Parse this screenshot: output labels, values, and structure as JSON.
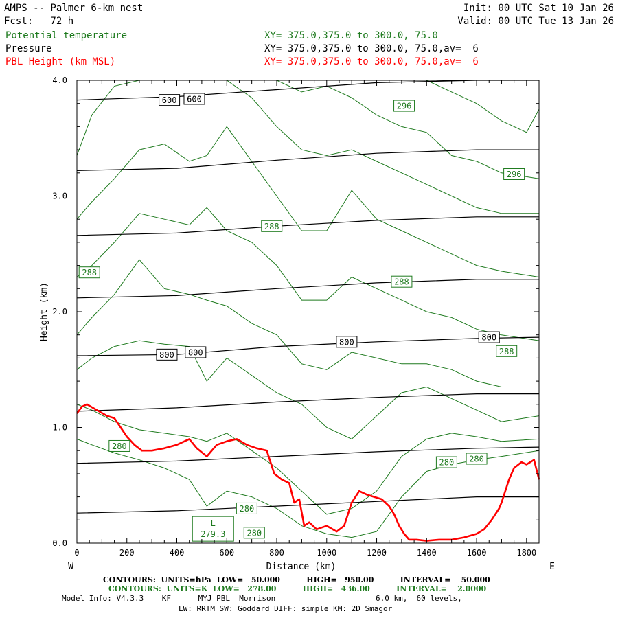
{
  "header": {
    "left_line1": "AMPS -- Palmer 6-km nest",
    "left_line2": "Fcst:   72 h",
    "right_line1": "Init: 00 UTC Sat 10 Jan 26",
    "right_line2": "Valid: 00 UTC Tue 13 Jan 26"
  },
  "legend": [
    {
      "label": "Potential temperature",
      "desc": "XY= 375.0,375.0 to 300.0, 75.0",
      "color": "#1e7a1e"
    },
    {
      "label": "Pressure",
      "desc": "XY= 375.0,375.0 to 300.0, 75.0,av=  6",
      "color": "#000000"
    },
    {
      "label": "PBL Height (km MSL)",
      "desc": "XY= 375.0,375.0 to 300.0, 75.0,av=  6",
      "color": "#ff0000"
    }
  ],
  "footer": {
    "line1": "CONTOURS:  UNITS=hPa  LOW=   50.000          HIGH=   950.00          INTERVAL=    50.000",
    "line2": "CONTOURS:  UNITS=K  LOW=   278.00          HIGH=   436.00          INTERVAL=    2.0000",
    "line3": "Model Info: V4.3.3    KF      MYJ PBL  Morrison                      6.0 km,  60 levels,",
    "line4": "LW: RRTM SW: Goddard DIFF: simple KM: 2D Smagor"
  },
  "chart_data": {
    "type": "line",
    "title": "AMPS -- Palmer 6-km nest cross section",
    "xlabel": "Distance (km)",
    "ylabel": "Height (km)",
    "xlim": [
      0,
      1850
    ],
    "ylim": [
      0,
      4.0
    ],
    "x_ticks": [
      0,
      200,
      400,
      600,
      800,
      1000,
      1200,
      1400,
      1600,
      1800
    ],
    "y_ticks": [
      0.0,
      1.0,
      2.0,
      3.0,
      4.0
    ],
    "y_tick_labels": [
      "0.0",
      "1.0",
      "2.0",
      "3.0",
      "4.0"
    ],
    "x_end_labels": {
      "left": "W",
      "right": "E"
    },
    "pressure_series": [
      {
        "name": "600 hPa",
        "x": [
          0,
          400,
          800,
          1200,
          1600,
          1850
        ],
        "y": [
          3.83,
          3.86,
          3.92,
          3.98,
          4.02,
          4.03
        ]
      },
      {
        "name": "650 hPa",
        "x": [
          0,
          400,
          800,
          1200,
          1600,
          1850
        ],
        "y": [
          3.22,
          3.24,
          3.31,
          3.37,
          3.4,
          3.4
        ]
      },
      {
        "name": "700 hPa",
        "x": [
          0,
          400,
          800,
          1200,
          1600,
          1850
        ],
        "y": [
          2.66,
          2.68,
          2.74,
          2.79,
          2.82,
          2.82
        ]
      },
      {
        "name": "750 hPa",
        "x": [
          0,
          400,
          800,
          1200,
          1600,
          1850
        ],
        "y": [
          2.12,
          2.14,
          2.2,
          2.25,
          2.28,
          2.28
        ]
      },
      {
        "name": "800 hPa",
        "x": [
          0,
          400,
          800,
          1200,
          1600,
          1850
        ],
        "y": [
          1.62,
          1.63,
          1.7,
          1.74,
          1.77,
          1.78
        ]
      },
      {
        "name": "850 hPa",
        "x": [
          0,
          400,
          800,
          1200,
          1600,
          1850
        ],
        "y": [
          1.14,
          1.17,
          1.22,
          1.26,
          1.29,
          1.29
        ]
      },
      {
        "name": "900 hPa",
        "x": [
          0,
          400,
          800,
          1200,
          1600,
          1850
        ],
        "y": [
          0.69,
          0.71,
          0.75,
          0.79,
          0.82,
          0.83
        ]
      },
      {
        "name": "950 hPa",
        "x": [
          0,
          400,
          800,
          1200,
          1600,
          1850
        ],
        "y": [
          0.26,
          0.28,
          0.32,
          0.36,
          0.4,
          0.4
        ]
      }
    ],
    "pressure_labels": [
      {
        "text": "600",
        "x": 370,
        "y": 3.83
      },
      {
        "text": "600",
        "x": 470,
        "y": 3.84
      },
      {
        "text": "800",
        "x": 360,
        "y": 1.63
      },
      {
        "text": "800",
        "x": 475,
        "y": 1.65
      },
      {
        "text": "800",
        "x": 1080,
        "y": 1.74
      },
      {
        "text": "800",
        "x": 1650,
        "y": 1.78
      }
    ],
    "theta_series": [
      {
        "name": "theta-1",
        "x": [
          0,
          60,
          150,
          250,
          350,
          450,
          520,
          600,
          700,
          800,
          900,
          1000,
          1100,
          1200,
          1300,
          1400,
          1500,
          1600,
          1700,
          1850
        ],
        "y": [
          0.9,
          0.85,
          0.78,
          0.72,
          0.65,
          0.55,
          0.32,
          0.45,
          0.4,
          0.3,
          0.15,
          0.08,
          0.05,
          0.1,
          0.4,
          0.62,
          0.68,
          0.72,
          0.75,
          0.8
        ]
      },
      {
        "name": "theta-2",
        "x": [
          0,
          60,
          150,
          250,
          350,
          450,
          520,
          600,
          700,
          800,
          900,
          1000,
          1100,
          1200,
          1300,
          1400,
          1500,
          1600,
          1700,
          1850
        ],
        "y": [
          1.2,
          1.15,
          1.05,
          0.98,
          0.95,
          0.92,
          0.88,
          0.95,
          0.8,
          0.65,
          0.45,
          0.25,
          0.3,
          0.45,
          0.75,
          0.9,
          0.95,
          0.92,
          0.88,
          0.9
        ]
      },
      {
        "name": "theta-3",
        "x": [
          0,
          60,
          150,
          250,
          350,
          450,
          520,
          600,
          700,
          800,
          900,
          1000,
          1100,
          1200,
          1300,
          1400,
          1500,
          1600,
          1700,
          1850
        ],
        "y": [
          1.5,
          1.6,
          1.7,
          1.75,
          1.72,
          1.7,
          1.4,
          1.6,
          1.45,
          1.3,
          1.2,
          1.0,
          0.9,
          1.1,
          1.3,
          1.35,
          1.25,
          1.15,
          1.05,
          1.1
        ]
      },
      {
        "name": "theta-4",
        "x": [
          0,
          60,
          150,
          250,
          350,
          450,
          520,
          600,
          700,
          800,
          900,
          1000,
          1100,
          1200,
          1300,
          1400,
          1500,
          1600,
          1700,
          1850
        ],
        "y": [
          1.8,
          1.95,
          2.15,
          2.45,
          2.2,
          2.15,
          2.1,
          2.05,
          1.9,
          1.8,
          1.55,
          1.5,
          1.65,
          1.6,
          1.55,
          1.55,
          1.5,
          1.4,
          1.35,
          1.35
        ]
      },
      {
        "name": "theta-5",
        "x": [
          0,
          60,
          150,
          250,
          350,
          450,
          520,
          600,
          700,
          800,
          900,
          1000,
          1100,
          1200,
          1300,
          1400,
          1500,
          1600,
          1700,
          1850
        ],
        "y": [
          2.3,
          2.4,
          2.6,
          2.85,
          2.8,
          2.75,
          2.9,
          2.7,
          2.6,
          2.4,
          2.1,
          2.1,
          2.3,
          2.2,
          2.1,
          2.0,
          1.95,
          1.85,
          1.8,
          1.75
        ]
      },
      {
        "name": "theta-6",
        "x": [
          0,
          60,
          150,
          250,
          350,
          450,
          520,
          600,
          700,
          800,
          900,
          1000,
          1100,
          1200,
          1300,
          1400,
          1500,
          1600,
          1700,
          1850
        ],
        "y": [
          2.8,
          2.95,
          3.15,
          3.4,
          3.45,
          3.3,
          3.35,
          3.6,
          3.3,
          3.0,
          2.7,
          2.7,
          3.05,
          2.8,
          2.7,
          2.6,
          2.5,
          2.4,
          2.35,
          2.3
        ]
      },
      {
        "name": "theta-7",
        "x": [
          0,
          60,
          150,
          250,
          350,
          450,
          520,
          600,
          700,
          800,
          900,
          1000,
          1100,
          1200,
          1300,
          1400,
          1500,
          1600,
          1700,
          1850
        ],
        "y": [
          3.35,
          3.7,
          3.95,
          4.0,
          4.0,
          4.0,
          4.0,
          4.0,
          3.85,
          3.6,
          3.4,
          3.35,
          3.4,
          3.3,
          3.2,
          3.1,
          3.0,
          2.9,
          2.85,
          2.85
        ]
      },
      {
        "name": "theta-8",
        "x": [
          800,
          900,
          1000,
          1100,
          1200,
          1300,
          1400,
          1500,
          1600,
          1700,
          1850
        ],
        "y": [
          4.0,
          3.9,
          3.95,
          3.85,
          3.7,
          3.6,
          3.55,
          3.35,
          3.3,
          3.2,
          3.15
        ]
      },
      {
        "name": "theta-9",
        "x": [
          1400,
          1500,
          1600,
          1700,
          1800,
          1850
        ],
        "y": [
          4.0,
          3.9,
          3.8,
          3.65,
          3.55,
          3.75
        ]
      }
    ],
    "theta_labels": [
      {
        "text": "296",
        "x": 1310,
        "y": 3.78
      },
      {
        "text": "296",
        "x": 1750,
        "y": 3.19
      },
      {
        "text": "288",
        "x": 50,
        "y": 2.34
      },
      {
        "text": "288",
        "x": 780,
        "y": 2.74
      },
      {
        "text": "288",
        "x": 1300,
        "y": 2.26
      },
      {
        "text": "288",
        "x": 1720,
        "y": 1.66
      },
      {
        "text": "280",
        "x": 170,
        "y": 0.84
      },
      {
        "text": "280",
        "x": 680,
        "y": 0.3
      },
      {
        "text": "280",
        "x": 710,
        "y": 0.09
      },
      {
        "text": "280",
        "x": 1480,
        "y": 0.7
      },
      {
        "text": "280",
        "x": 1600,
        "y": 0.73
      }
    ],
    "low_marker": {
      "letter": "L",
      "value": "279.3",
      "x": 545,
      "y": 0.1
    },
    "pbl_height": {
      "name": "PBL Height (km MSL)",
      "x": [
        0,
        20,
        40,
        80,
        120,
        150,
        200,
        230,
        260,
        300,
        350,
        400,
        450,
        480,
        520,
        560,
        600,
        640,
        680,
        720,
        760,
        790,
        820,
        850,
        870,
        890,
        910,
        930,
        960,
        1000,
        1040,
        1070,
        1100,
        1130,
        1160,
        1190,
        1220,
        1250,
        1270,
        1290,
        1310,
        1330,
        1360,
        1400,
        1450,
        1500,
        1550,
        1600,
        1630,
        1660,
        1690,
        1700,
        1730,
        1750,
        1780,
        1800,
        1830,
        1850
      ],
      "y": [
        1.12,
        1.18,
        1.2,
        1.15,
        1.1,
        1.08,
        0.92,
        0.85,
        0.8,
        0.8,
        0.82,
        0.85,
        0.9,
        0.82,
        0.75,
        0.85,
        0.88,
        0.9,
        0.85,
        0.82,
        0.8,
        0.6,
        0.55,
        0.52,
        0.35,
        0.38,
        0.15,
        0.18,
        0.12,
        0.15,
        0.1,
        0.15,
        0.35,
        0.45,
        0.42,
        0.4,
        0.38,
        0.32,
        0.25,
        0.15,
        0.08,
        0.03,
        0.03,
        0.02,
        0.03,
        0.03,
        0.05,
        0.08,
        0.12,
        0.2,
        0.3,
        0.35,
        0.55,
        0.65,
        0.7,
        0.68,
        0.72,
        0.55
      ]
    }
  }
}
